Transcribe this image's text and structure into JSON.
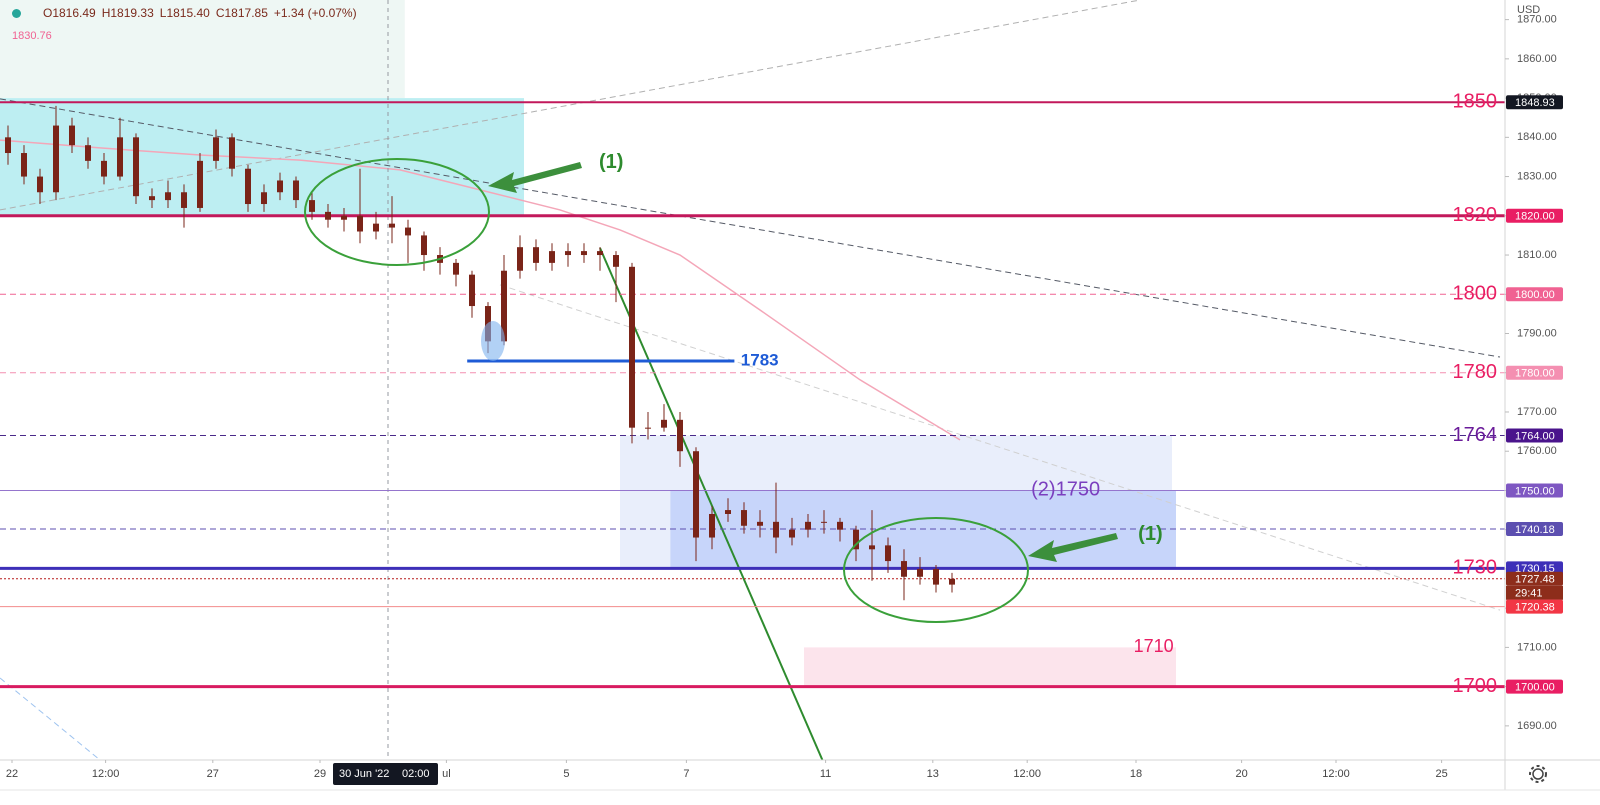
{
  "chart_data": {
    "type": "candlestick",
    "currency": "USD",
    "header": [
      "O1816.49",
      "H1819.33",
      "L1815.40",
      "C1817.85",
      "+1.34 (+0.07%)"
    ],
    "indicator_label": "1830.76",
    "candle_color": "#7a2418",
    "x": [
      0.5,
      1.5,
      2.5,
      3.5,
      4.5,
      5.5,
      6.5,
      7.5,
      8.5,
      9.5,
      10.5,
      11.5,
      12.5,
      13.5,
      14.5,
      15.5,
      16.5,
      17.5,
      18.5,
      19.5,
      20.5,
      21.5,
      22.5,
      23.5,
      24.5,
      25.5,
      26.5,
      27.5,
      28.5,
      29.5,
      30.5,
      31.5,
      32.5,
      33.5,
      34.5,
      35.5,
      36.5,
      37.5,
      38.5,
      39.5,
      40.5,
      41.5,
      42.5,
      43.5,
      44.5,
      45.5,
      46.5,
      47.5,
      48.5,
      49.5,
      50.5,
      51.5,
      52.5,
      53.5,
      54.5,
      55.5,
      56.5,
      57.5,
      58.5,
      59.5
    ],
    "open": [
      1840,
      1836,
      1830,
      1826,
      1843,
      1838,
      1834,
      1830,
      1840,
      1825,
      1824,
      1826,
      1822,
      1834,
      1840,
      1832,
      1823,
      1826,
      1829,
      1824,
      1821,
      1819,
      1820,
      1816,
      1818,
      1817,
      1815,
      1810,
      1808,
      1805,
      1797,
      1788,
      1806,
      1812,
      1808,
      1811,
      1810,
      1811,
      1810,
      1807,
      1766,
      1766,
      1768,
      1760,
      1738,
      1744,
      1745,
      1741,
      1742,
      1738,
      1740,
      1742,
      1742,
      1740,
      1735,
      1736,
      1732,
      1728,
      1730,
      1726
    ],
    "high": [
      1843,
      1838,
      1832,
      1848,
      1845,
      1840,
      1836,
      1845,
      1841,
      1827,
      1829,
      1828,
      1836,
      1842,
      1841,
      1833,
      1828,
      1831,
      1830,
      1826,
      1823,
      1822,
      1832,
      1821,
      1825,
      1819,
      1816,
      1812,
      1809,
      1806,
      1798,
      1810,
      1815,
      1814,
      1813,
      1813,
      1813,
      1812,
      1811,
      1808,
      1770,
      1772,
      1770,
      1761,
      1746,
      1748,
      1747,
      1745,
      1752,
      1743,
      1744,
      1745,
      1743,
      1741,
      1745,
      1738,
      1735,
      1733,
      1731,
      1729
    ],
    "low": [
      1833,
      1828,
      1823,
      1824,
      1836,
      1832,
      1828,
      1829,
      1823,
      1822,
      1822,
      1817,
      1821,
      1832,
      1830,
      1821,
      1821,
      1824,
      1822,
      1819,
      1817,
      1816,
      1813,
      1814,
      1813,
      1808,
      1806,
      1805,
      1802,
      1794,
      1785,
      1787,
      1804,
      1806,
      1806,
      1807,
      1808,
      1806,
      1798,
      1762,
      1763,
      1765,
      1756,
      1732,
      1735,
      1742,
      1739,
      1738,
      1734,
      1736,
      1738,
      1739,
      1737,
      1732,
      1727,
      1729,
      1722,
      1726,
      1724,
      1724
    ],
    "close": [
      1836,
      1830,
      1826,
      1843,
      1838,
      1834,
      1830,
      1840,
      1825,
      1824,
      1826,
      1822,
      1834,
      1840,
      1832,
      1823,
      1826,
      1829,
      1824,
      1821,
      1819,
      1820,
      1816,
      1818,
      1817,
      1815,
      1810,
      1808,
      1805,
      1797,
      1788,
      1806,
      1812,
      1808,
      1811,
      1810,
      1811,
      1810,
      1807,
      1766,
      1766,
      1768,
      1760,
      1738,
      1744,
      1745,
      1741,
      1742,
      1738,
      1740,
      1742,
      1742,
      1740,
      1735,
      1736,
      1732,
      1728,
      1730,
      1726,
      1727.48
    ],
    "xlim": [
      0,
      94.0625
    ],
    "xticks": [
      {
        "value": 0.75,
        "label": "22"
      },
      {
        "value": 6.6,
        "label": "12:00"
      },
      {
        "value": 13.3,
        "label": "27"
      },
      {
        "value": 20,
        "label": "29"
      },
      {
        "value": 27.9,
        "label": "ul"
      },
      {
        "value": 35.4,
        "label": "5"
      },
      {
        "value": 42.9,
        "label": "7"
      },
      {
        "value": 51.6,
        "label": "11"
      },
      {
        "value": 58.3,
        "label": "13"
      },
      {
        "value": 64.2,
        "label": "12:00"
      },
      {
        "value": 71,
        "label": "18"
      },
      {
        "value": 77.6,
        "label": "20"
      },
      {
        "value": 83.5,
        "label": "12:00"
      },
      {
        "value": 90.1,
        "label": "25"
      }
    ],
    "crosshair": {
      "x": 24.25,
      "labels": [
        "30 Jun '22",
        "02:00"
      ]
    },
    "ylim": [
      1681.3,
      1875
    ],
    "yticks": [
      {
        "value": 1690,
        "label": "1690.00"
      },
      {
        "value": 1700,
        "label": "1700.00"
      },
      {
        "value": 1710,
        "label": "1710.00"
      },
      {
        "value": 1720,
        "label": "1720.00"
      },
      {
        "value": 1730,
        "label": "1730.00"
      },
      {
        "value": 1740,
        "label": "1740.00"
      },
      {
        "value": 1750,
        "label": "1750.00"
      },
      {
        "value": 1760,
        "label": "1760.00"
      },
      {
        "value": 1770,
        "label": "1770.00"
      },
      {
        "value": 1780,
        "label": "1780.00"
      },
      {
        "value": 1790,
        "label": "1790.00"
      },
      {
        "value": 1800,
        "label": "1800.00"
      },
      {
        "value": 1810,
        "label": "1810.00"
      },
      {
        "value": 1820,
        "label": "1820.00"
      },
      {
        "value": 1830,
        "label": "1830.00"
      },
      {
        "value": 1840,
        "label": "1840.00"
      },
      {
        "value": 1850,
        "label": "1850.00"
      },
      {
        "value": 1860,
        "label": "1860.00"
      },
      {
        "value": 1870,
        "label": "1870.00"
      }
    ],
    "grid": false,
    "zones": [
      {
        "x": [
          0,
          25.3
        ],
        "y": [
          1850,
          1875
        ],
        "color": "#eef7f4"
      },
      {
        "x": [
          0,
          32.75
        ],
        "y": [
          1820,
          1850
        ],
        "color": "#bdeef2"
      },
      {
        "x": [
          38.75,
          73.25
        ],
        "y": [
          1730,
          1764
        ],
        "color": "#e9eefb"
      },
      {
        "x": [
          41.9,
          73.5
        ],
        "y": [
          1730,
          1750
        ],
        "color": "#c7d5fa"
      },
      {
        "x": [
          50.25,
          73.5
        ],
        "y": [
          1700,
          1710
        ],
        "color": "#fce4ec",
        "label": "1710",
        "label_color": "#e91e63",
        "label_x": 72.1
      }
    ],
    "trend_lines": [
      {
        "points": [
          [
            0,
            1821.5
          ],
          [
            71.25,
            1875
          ]
        ],
        "color": "#b0b0b0",
        "style": "dashed",
        "width": 1
      },
      {
        "points": [
          [
            0,
            1849.8
          ],
          [
            93.75,
            1784.0
          ]
        ],
        "color": "#555a66",
        "style": "dashed",
        "width": 1
      },
      {
        "points": [
          [
            31.25,
            1802.4
          ],
          [
            93.75,
            1719.5
          ]
        ],
        "color": "#d0d0d0",
        "style": "dashed",
        "width": 1
      },
      {
        "points": [
          [
            0,
            1702.2
          ],
          [
            6.25,
            1681.3
          ]
        ],
        "color": "#9ec3ef",
        "style": "dashed",
        "width": 1
      },
      {
        "points": [
          [
            37.5,
            1811.8
          ],
          [
            51.4,
            1681.3
          ]
        ],
        "color": "#2e8b2e",
        "style": "solid",
        "width": 2
      },
      {
        "points": [
          [
            0,
            1839.3
          ],
          [
            6.25,
            1837.3
          ],
          [
            12.5,
            1835.5
          ],
          [
            18.75,
            1834.2
          ],
          [
            25,
            1831.7
          ],
          [
            30,
            1826.6
          ],
          [
            35,
            1821.5
          ],
          [
            38.75,
            1816.4
          ],
          [
            42.5,
            1810.0
          ],
          [
            47.5,
            1796.0
          ],
          [
            53.75,
            1778.2
          ],
          [
            60,
            1762.9
          ]
        ],
        "color": "#f4a6b8",
        "style": "solid",
        "width": 1.5
      }
    ],
    "levels": [
      {
        "value": 1848.93,
        "color": "#c2185b",
        "width": 2,
        "style": "solid",
        "label": "1850",
        "label_color": "#e91e63",
        "tag": "1848.93",
        "tag_color": "#131722"
      },
      {
        "value": 1820,
        "color": "#c2185b",
        "width": 3,
        "style": "solid",
        "label": "1820",
        "label_color": "#e91e63",
        "tag": "1820.00",
        "tag_color": "#e91e63"
      },
      {
        "value": 1800,
        "color": "#f06292",
        "width": 1,
        "style": "dashed",
        "label": "1800",
        "label_color": "#e91e63",
        "tag": "1800.00",
        "tag_color": "#f06292"
      },
      {
        "value": 1780,
        "color": "#f48fb1",
        "width": 1,
        "style": "dashed",
        "label": "1780",
        "label_color": "#e91e63",
        "tag": "1780.00",
        "tag_color": "#f48fb1"
      },
      {
        "value": 1764,
        "color": "#4a2a8a",
        "width": 1,
        "style": "dashed",
        "label": "1764",
        "label_color": "#6a1b9a",
        "tag": "1764.00",
        "tag_color": "#4a148c"
      },
      {
        "value": 1750,
        "color": "#9575cd",
        "width": 1,
        "style": "solid",
        "label": "(2)1750",
        "label_color": "#7b3fbf",
        "label_x": 66.6,
        "tag": "1750.00",
        "tag_color": "#7e57c2"
      },
      {
        "value": 1740.18,
        "color": "#5c4fb0",
        "width": 1,
        "style": "dashed",
        "tag": "1740.18",
        "tag_color": "#5c4fb0"
      },
      {
        "value": 1730.15,
        "color": "#3d2fb8",
        "width": 3,
        "style": "solid",
        "label": "1730",
        "label_color": "#e91e63",
        "tag": "1730.15",
        "tag_color": "#3d2fb8"
      },
      {
        "value": 1727.48,
        "color": "#b71c1c",
        "width": 1,
        "style": "dotted",
        "tag": "1727.48",
        "tag_color": "#8d2d1b",
        "countdown": "29:41"
      },
      {
        "value": 1720.38,
        "color": "#f28b8b",
        "width": 1,
        "style": "solid",
        "tag": "1720.38",
        "tag_color": "#f23645"
      },
      {
        "value": 1700,
        "color": "#d81b60",
        "width": 3,
        "style": "solid",
        "label": "1700",
        "label_color": "#e91e63",
        "tag": "1700.00",
        "tag_color": "#e91e63"
      }
    ],
    "segments": [
      {
        "value": 1783,
        "x": [
          29.2,
          45.9
        ],
        "color": "#1e5bd6",
        "width": 3,
        "label": "1783",
        "label_color": "#1e5bd6",
        "label_x": 46.3
      }
    ],
    "annotations": [
      {
        "text": "(1)",
        "x": 38.2,
        "y": 1833.5,
        "color": "#2e8b2e"
      },
      {
        "text": "(1)",
        "x": 71.9,
        "y": 1738.7,
        "color": "#2e8b2e"
      }
    ]
  }
}
